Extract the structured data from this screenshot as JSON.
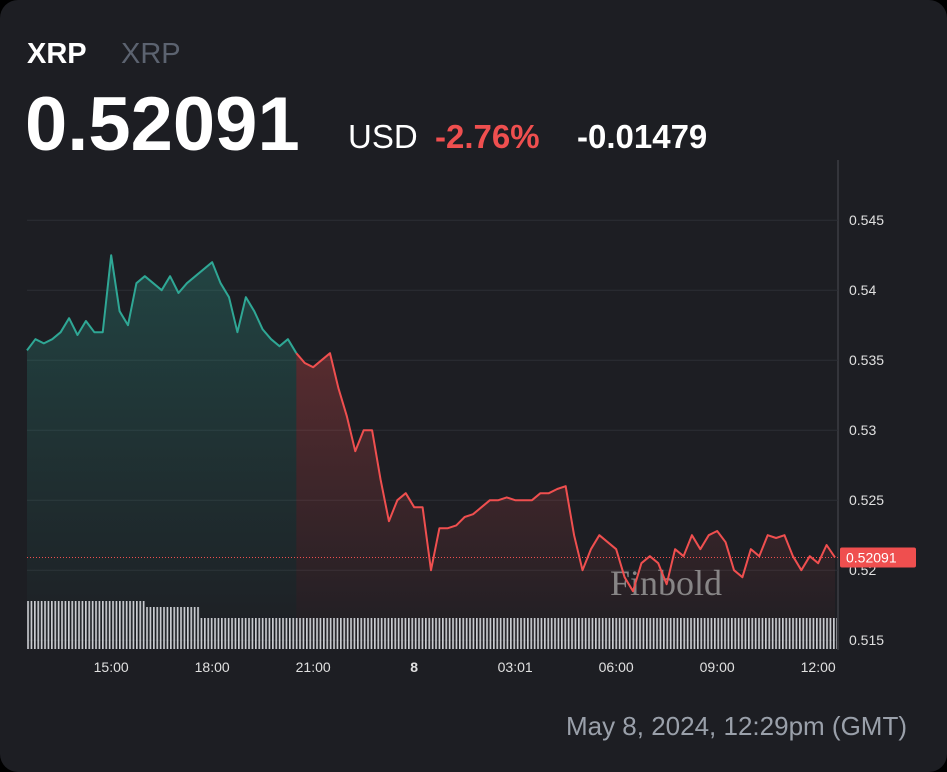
{
  "symbol": "XRP",
  "name": "XRP",
  "price": 0.52091,
  "currency": "USD",
  "change_percent": "-2.76%",
  "change": -0.01479,
  "watermark": "Finbold",
  "timestamp": "May 8, 2024, 12:29pm (GMT)",
  "chart_data": {
    "type": "line",
    "up_color": "#2fa795",
    "down_color": "#ef4f4f",
    "categories": [
      null,
      null,
      null,
      null,
      null,
      null,
      null,
      null,
      null,
      null,
      "15:00",
      null,
      null,
      null,
      null,
      null,
      null,
      null,
      null,
      null,
      null,
      null,
      "18:00",
      null,
      null,
      null,
      null,
      null,
      null,
      null,
      null,
      null,
      null,
      null,
      "21:00",
      null,
      null,
      null,
      null,
      null,
      null,
      null,
      null,
      null,
      null,
      null,
      "8",
      null,
      null,
      null,
      null,
      null,
      null,
      null,
      null,
      null,
      null,
      null,
      "03:01",
      null,
      null,
      null,
      null,
      null,
      null,
      null,
      null,
      null,
      null,
      null,
      "06:00",
      null,
      null,
      null,
      null,
      null,
      null,
      null,
      null,
      null,
      null,
      null,
      "09:00",
      null,
      null,
      null,
      null,
      null,
      null,
      null,
      null,
      null,
      null,
      null,
      "12:00",
      null,
      null
    ],
    "values": [
      0.5357,
      0.5365,
      0.5362,
      0.5365,
      0.537,
      0.538,
      0.5368,
      0.5378,
      0.537,
      0.537,
      0.5425,
      0.5385,
      0.5375,
      0.5405,
      0.541,
      0.5405,
      0.54,
      0.541,
      0.5398,
      0.5405,
      0.541,
      0.5415,
      0.542,
      0.5405,
      0.5395,
      0.537,
      0.5395,
      0.5385,
      0.5372,
      0.5365,
      0.536,
      0.5365,
      0.5355,
      0.5348,
      0.5345,
      0.535,
      0.5355,
      0.533,
      0.531,
      0.5285,
      0.53,
      0.53,
      0.5265,
      0.5235,
      0.525,
      0.5255,
      0.5245,
      0.5245,
      0.52,
      0.523,
      0.523,
      0.5232,
      0.5238,
      0.524,
      0.5245,
      0.525,
      0.525,
      0.5252,
      0.525,
      0.525,
      0.525,
      0.5255,
      0.5255,
      0.5258,
      0.526,
      0.5225,
      0.52,
      0.5215,
      0.5225,
      0.522,
      0.5215,
      0.5195,
      0.5185,
      0.5205,
      0.521,
      0.5205,
      0.519,
      0.5215,
      0.521,
      0.5225,
      0.5215,
      0.5225,
      0.5228,
      0.522,
      0.52,
      0.5195,
      0.5215,
      0.521,
      0.5225,
      0.5223,
      0.5225,
      0.521,
      0.52,
      0.521,
      0.5205,
      0.5218,
      0.52091
    ],
    "ylim": [
      0.5143,
      0.5493
    ],
    "yticks": [
      0.545,
      0.54,
      0.535,
      0.53,
      0.525,
      0.52,
      0.515
    ],
    "grid": true
  }
}
